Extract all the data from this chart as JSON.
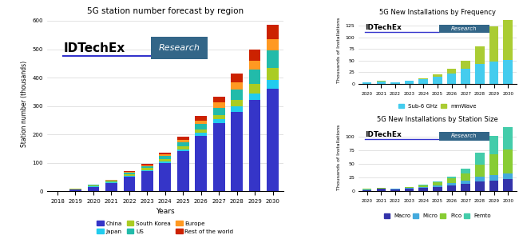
{
  "title_left": "5G station number forecast by region",
  "title_top_right": "5G New Installations by Frequency",
  "title_bot_right": "5G New Installations by Station Size",
  "years_left": [
    2018,
    2019,
    2020,
    2021,
    2022,
    2023,
    2024,
    2025,
    2026,
    2027,
    2028,
    2029,
    2030
  ],
  "years_right": [
    2020,
    2021,
    2022,
    2023,
    2024,
    2025,
    2026,
    2027,
    2028,
    2029,
    2030
  ],
  "region_data": {
    "China": [
      1,
      5,
      15,
      28,
      50,
      70,
      100,
      140,
      195,
      240,
      280,
      320,
      360
    ],
    "Japan": [
      0,
      1,
      2,
      3,
      4,
      5,
      6,
      8,
      10,
      13,
      18,
      25,
      32
    ],
    "South Korea": [
      0,
      2,
      3,
      3,
      5,
      6,
      8,
      10,
      12,
      16,
      22,
      32,
      42
    ],
    "US": [
      0,
      1,
      2,
      3,
      5,
      6,
      9,
      13,
      19,
      25,
      38,
      50,
      63
    ],
    "Europe": [
      0,
      0,
      1,
      2,
      3,
      4,
      6,
      9,
      13,
      18,
      24,
      32,
      38
    ],
    "Rest of the world": [
      0,
      1,
      1,
      2,
      3,
      5,
      8,
      11,
      16,
      22,
      32,
      41,
      50
    ]
  },
  "region_colors": {
    "China": "#3535c8",
    "Japan": "#22ccee",
    "South Korea": "#aacc22",
    "US": "#22bbaa",
    "Europe": "#ff9922",
    "Rest of the world": "#cc2200"
  },
  "freq_data": {
    "Sub-6 GHz": [
      4,
      5,
      4,
      6,
      10,
      15,
      22,
      32,
      42,
      48,
      52
    ],
    "mmWave": [
      0,
      1,
      0,
      1,
      2,
      5,
      10,
      18,
      38,
      75,
      85
    ]
  },
  "freq_colors": {
    "Sub-6 GHz": "#44ccee",
    "mmWave": "#aacc33"
  },
  "size_data": {
    "Macro": [
      2,
      4,
      3,
      4,
      6,
      8,
      11,
      14,
      18,
      20,
      22
    ],
    "Micro": [
      1,
      1,
      1,
      2,
      2,
      3,
      4,
      6,
      8,
      9,
      11
    ],
    "Pico": [
      1,
      1,
      1,
      2,
      3,
      5,
      8,
      12,
      22,
      38,
      44
    ],
    "Femto": [
      0,
      0,
      0,
      0,
      1,
      2,
      4,
      9,
      22,
      34,
      40
    ]
  },
  "size_colors": {
    "Macro": "#3333aa",
    "Micro": "#44aadd",
    "Pico": "#88cc33",
    "Femto": "#44ccaa"
  },
  "ylabel_left": "Station number (thousands)",
  "ylabel_right": "Thousands of Installations",
  "xlabel_left": "Years",
  "background_color": "#ffffff",
  "research_box_color": "#336688"
}
